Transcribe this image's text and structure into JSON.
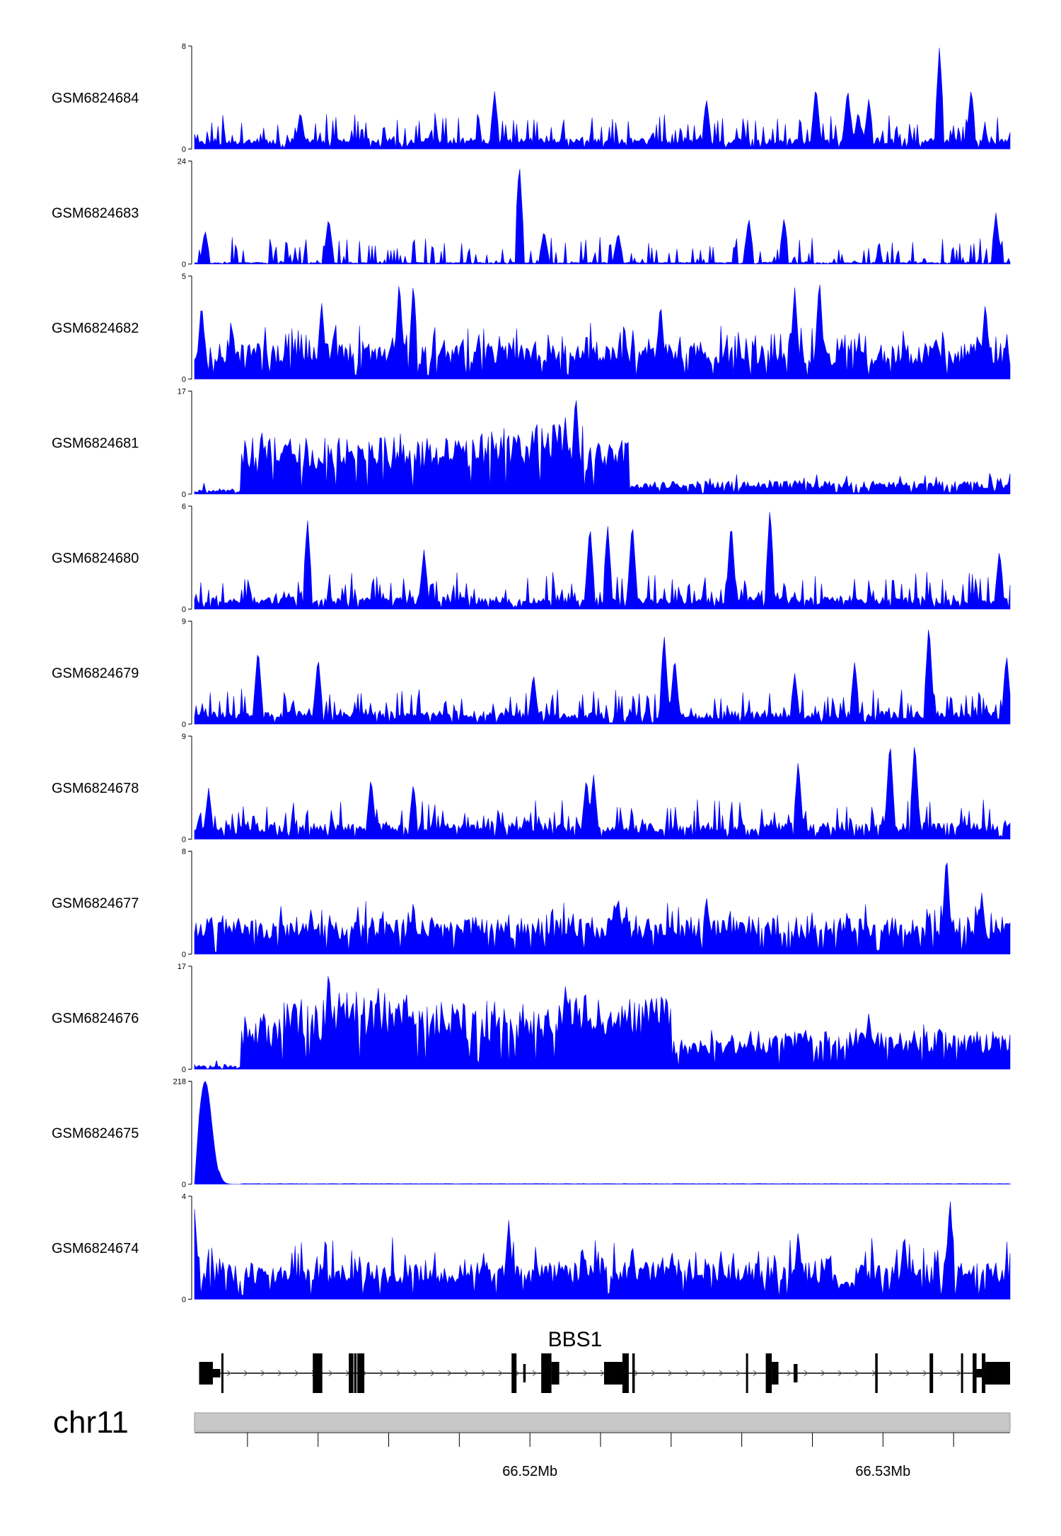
{
  "chart_data": {
    "type": "area",
    "color": "#0000ff",
    "x_range": [
      66.5105,
      66.5336
    ],
    "tracks": [
      {
        "name": "GSM6824684",
        "ymax": 8,
        "seed": 11,
        "baseline": 0.6,
        "spikiness": 1.0,
        "peaks": [
          [
            66.519,
            4.5
          ],
          [
            66.525,
            4.0
          ],
          [
            66.5281,
            5.0
          ],
          [
            66.5296,
            4.0
          ],
          [
            66.5316,
            8.0
          ],
          [
            66.5293,
            3.0
          ],
          [
            66.5325,
            4.8
          ],
          [
            66.5135,
            3.0
          ],
          [
            66.529,
            4.8
          ]
        ]
      },
      {
        "name": "GSM6824683",
        "ymax": 24,
        "seed": 23,
        "baseline": 0.3,
        "spikiness": 1.0,
        "peaks": [
          [
            66.5197,
            24.0
          ],
          [
            66.5143,
            11.0
          ],
          [
            66.5204,
            8.0
          ],
          [
            66.5262,
            11.0
          ],
          [
            66.5272,
            11.0
          ],
          [
            66.5332,
            12.0
          ],
          [
            66.5225,
            7.5
          ],
          [
            66.5108,
            8.0
          ]
        ]
      },
      {
        "name": "GSM6824682",
        "ymax": 5,
        "seed": 37,
        "baseline": 1.2,
        "spikiness": 1.0,
        "peaks": [
          [
            66.5163,
            4.9
          ],
          [
            66.5167,
            4.8
          ],
          [
            66.5275,
            4.5
          ],
          [
            66.5282,
            5.0
          ],
          [
            66.5107,
            3.8
          ],
          [
            66.5141,
            3.8
          ],
          [
            66.5237,
            3.8
          ],
          [
            66.5329,
            3.8
          ]
        ]
      },
      {
        "name": "GSM6824681",
        "ymax": 17,
        "seed": 41,
        "baseline": 3.5,
        "spikiness": 0.35,
        "smooth": [
          [
            66.5105,
            66.5118,
            0.5
          ],
          [
            66.5118,
            66.5128,
            6.5
          ],
          [
            66.5128,
            66.518,
            6.5
          ],
          [
            66.518,
            66.52,
            7.0
          ],
          [
            66.52,
            66.5215,
            8.0
          ],
          [
            66.5215,
            66.5218,
            6.0
          ],
          [
            66.5218,
            66.5228,
            6.5
          ],
          [
            66.5228,
            66.5336,
            1.5
          ]
        ],
        "peaks": [
          [
            66.521,
            13.0
          ],
          [
            66.5213,
            17.0
          ],
          [
            66.5207,
            12.0
          ],
          [
            66.5124,
            11.0
          ],
          [
            66.5132,
            10.0
          ],
          [
            66.5179,
            9.5
          ],
          [
            66.5197,
            9.5
          ]
        ]
      },
      {
        "name": "GSM6824680",
        "ymax": 6,
        "seed": 53,
        "baseline": 0.5,
        "spikiness": 1.0,
        "peaks": [
          [
            66.5268,
            6.0
          ],
          [
            66.5137,
            5.3
          ],
          [
            66.5229,
            5.2
          ],
          [
            66.5257,
            5.2
          ],
          [
            66.5217,
            5.0
          ],
          [
            66.5222,
            5.0
          ],
          [
            66.517,
            3.5
          ],
          [
            66.5333,
            3.5
          ]
        ]
      },
      {
        "name": "GSM6824679",
        "ymax": 9,
        "seed": 61,
        "baseline": 0.8,
        "spikiness": 1.0,
        "peaks": [
          [
            66.5313,
            9.0
          ],
          [
            66.5238,
            8.0
          ],
          [
            66.5123,
            6.8
          ],
          [
            66.514,
            6.0
          ],
          [
            66.5241,
            6.0
          ],
          [
            66.5292,
            5.6
          ],
          [
            66.5335,
            6.2
          ],
          [
            66.5275,
            4.5
          ],
          [
            66.5201,
            4.5
          ]
        ]
      },
      {
        "name": "GSM6824678",
        "ymax": 9,
        "seed": 71,
        "baseline": 1.0,
        "spikiness": 1.0,
        "peaks": [
          [
            66.5302,
            8.8
          ],
          [
            66.5309,
            8.8
          ],
          [
            66.5276,
            7.0
          ],
          [
            66.5218,
            5.8
          ],
          [
            66.5216,
            5.5
          ],
          [
            66.5155,
            5.5
          ],
          [
            66.5167,
            5.0
          ],
          [
            66.5109,
            4.5
          ]
        ]
      },
      {
        "name": "GSM6824677",
        "ymax": 8,
        "seed": 83,
        "baseline": 2.0,
        "spikiness": 0.7,
        "peaks": [
          [
            66.5318,
            8.0
          ],
          [
            66.5328,
            4.8
          ],
          [
            66.5225,
            4.6
          ],
          [
            66.525,
            4.6
          ],
          [
            66.5138,
            3.6
          ],
          [
            66.5224,
            4.2
          ]
        ]
      },
      {
        "name": "GSM6824676",
        "ymax": 17,
        "seed": 97,
        "baseline": 5.0,
        "spikiness": 0.35,
        "smooth": [
          [
            66.5105,
            66.5118,
            0.5
          ],
          [
            66.5118,
            66.513,
            6.0
          ],
          [
            66.513,
            66.5165,
            8.0
          ],
          [
            66.5165,
            66.521,
            8.0
          ],
          [
            66.521,
            66.524,
            8.5
          ],
          [
            66.524,
            66.525,
            3.5
          ],
          [
            66.525,
            66.5336,
            4.5
          ]
        ],
        "peaks": [
          [
            66.5143,
            17.0
          ],
          [
            66.5146,
            13.0
          ],
          [
            66.5157,
            14.0
          ],
          [
            66.521,
            14.0
          ],
          [
            66.5213,
            13.0
          ],
          [
            66.5233,
            11.5
          ],
          [
            66.5296,
            9.5
          ]
        ]
      },
      {
        "name": "GSM6824675",
        "ymax": 218,
        "seed": 101,
        "baseline": 0.0,
        "spikiness": 0.0,
        "peaks": [
          [
            66.5108,
            218.0
          ]
        ],
        "flat": true
      },
      {
        "name": "GSM6824674",
        "ymax": 4,
        "seed": 113,
        "baseline": 1.0,
        "spikiness": 1.0,
        "peaks": [
          [
            66.5319,
            4.0
          ],
          [
            66.5194,
            3.1
          ],
          [
            66.5105,
            3.5
          ],
          [
            66.5276,
            2.7
          ],
          [
            66.5306,
            2.6
          ],
          [
            66.5229,
            2.2
          ],
          [
            66.5215,
            2.0
          ]
        ],
        "lowband": [
          66.5287,
          66.5292
        ]
      }
    ],
    "gene": {
      "name": "BBS1",
      "exons": [
        [
          66.51063,
          66.51102,
          "thick"
        ],
        [
          66.51102,
          66.51123,
          "thin"
        ],
        [
          66.51126,
          66.5113,
          "tall"
        ],
        [
          66.51385,
          66.51412,
          "tall"
        ],
        [
          66.51487,
          66.515,
          "tall"
        ],
        [
          66.51502,
          66.51509,
          "tall"
        ],
        [
          66.51511,
          66.51531,
          "tall"
        ],
        [
          66.51948,
          66.51962,
          "tall"
        ],
        [
          66.51981,
          66.51988,
          "mid"
        ],
        [
          66.52032,
          66.52061,
          "tall"
        ],
        [
          66.52061,
          66.52083,
          "thick"
        ],
        [
          66.5221,
          66.52262,
          "thick"
        ],
        [
          66.52262,
          66.5228,
          "tall"
        ],
        [
          66.5229,
          66.52297,
          "tall"
        ],
        [
          66.52612,
          66.52617,
          "tall"
        ],
        [
          66.52668,
          66.52685,
          "tall"
        ],
        [
          66.52685,
          66.52704,
          "thick"
        ],
        [
          66.52747,
          66.52758,
          "mid"
        ],
        [
          66.52978,
          66.52985,
          "tall"
        ],
        [
          66.53132,
          66.53142,
          "tall"
        ],
        [
          66.53221,
          66.53225,
          "tall"
        ],
        [
          66.53254,
          66.53265,
          "tall"
        ],
        [
          66.53265,
          66.5328,
          "thin"
        ],
        [
          66.5328,
          66.5329,
          "tall"
        ],
        [
          66.5329,
          66.5336,
          "thick"
        ]
      ]
    },
    "chromosome": "chr11",
    "x_axis": {
      "ticks": [
        66.512,
        66.514,
        66.516,
        66.518,
        66.52,
        66.522,
        66.524,
        66.526,
        66.528,
        66.53,
        66.532
      ],
      "labels": [
        {
          "value": 66.52,
          "text": "66.52Mb"
        },
        {
          "value": 66.53,
          "text": "66.53Mb"
        }
      ]
    }
  }
}
